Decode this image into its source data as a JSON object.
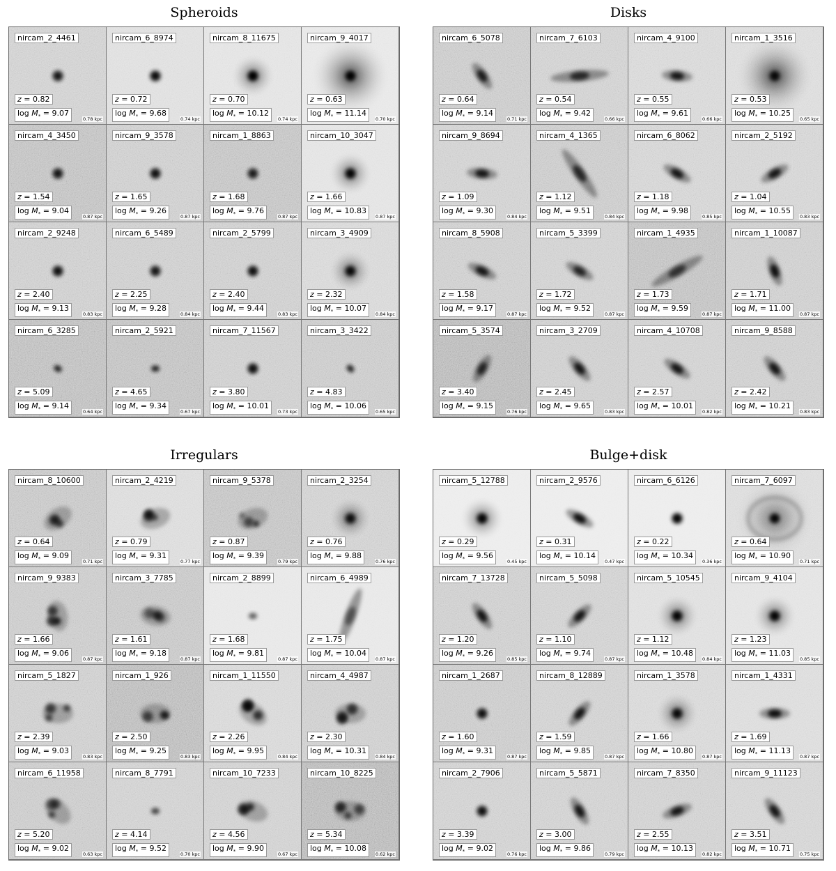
{
  "panels": [
    {
      "title": "Spheroids",
      "galaxies": [
        {
          "id": "nircam_2_4461",
          "z": "0.82",
          "logm": "9.07",
          "scale": "0.78 kpc",
          "noise": 0.45,
          "shape": "compact",
          "bright": 0.8,
          "angle": 0
        },
        {
          "id": "nircam_6_8974",
          "z": "0.72",
          "logm": "9.68",
          "scale": "0.74 kpc",
          "noise": 0.25,
          "shape": "compact",
          "bright": 0.9,
          "angle": 0
        },
        {
          "id": "nircam_8_11675",
          "z": "0.70",
          "logm": "10.12",
          "scale": "0.74 kpc",
          "noise": 0.2,
          "shape": "halo",
          "bright": 1.0,
          "angle": 0
        },
        {
          "id": "nircam_9_4017",
          "z": "0.63",
          "logm": "11.14",
          "scale": "0.70 kpc",
          "noise": 0.15,
          "shape": "bighalo",
          "bright": 1.0,
          "angle": 0
        },
        {
          "id": "nircam_4_3450",
          "z": "1.54",
          "logm": "9.04",
          "scale": "0.87 kpc",
          "noise": 0.7,
          "shape": "compact",
          "bright": 0.8,
          "angle": 0
        },
        {
          "id": "nircam_9_3578",
          "z": "1.65",
          "logm": "9.26",
          "scale": "0.87 kpc",
          "noise": 0.5,
          "shape": "compact",
          "bright": 0.85,
          "angle": 0
        },
        {
          "id": "nircam_1_8863",
          "z": "1.68",
          "logm": "9.76",
          "scale": "0.87 kpc",
          "noise": 0.65,
          "shape": "compact",
          "bright": 0.75,
          "angle": 0
        },
        {
          "id": "nircam_10_3047",
          "z": "1.66",
          "logm": "10.83",
          "scale": "0.87 kpc",
          "noise": 0.2,
          "shape": "halo",
          "bright": 0.95,
          "angle": 0
        },
        {
          "id": "nircam_2_9248",
          "z": "2.40",
          "logm": "9.13",
          "scale": "0.83 kpc",
          "noise": 0.5,
          "shape": "compact",
          "bright": 0.85,
          "angle": 0
        },
        {
          "id": "nircam_6_5489",
          "z": "2.25",
          "logm": "9.28",
          "scale": "0.84 kpc",
          "noise": 0.5,
          "shape": "compact",
          "bright": 0.8,
          "angle": 20
        },
        {
          "id": "nircam_2_5799",
          "z": "2.40",
          "logm": "9.44",
          "scale": "0.83 kpc",
          "noise": 0.5,
          "shape": "compact",
          "bright": 0.85,
          "angle": 0
        },
        {
          "id": "nircam_3_4909",
          "z": "2.32",
          "logm": "10.07",
          "scale": "0.84 kpc",
          "noise": 0.35,
          "shape": "halo",
          "bright": 0.9,
          "angle": 0
        },
        {
          "id": "nircam_6_3285",
          "z": "5.09",
          "logm": "9.14",
          "scale": "0.64 kpc",
          "noise": 0.75,
          "shape": "small",
          "bright": 0.85,
          "angle": 30
        },
        {
          "id": "nircam_2_5921",
          "z": "4.65",
          "logm": "9.34",
          "scale": "0.67 kpc",
          "noise": 0.7,
          "shape": "small",
          "bright": 0.85,
          "angle": 0
        },
        {
          "id": "nircam_7_11567",
          "z": "3.80",
          "logm": "10.01",
          "scale": "0.73 kpc",
          "noise": 0.5,
          "shape": "compact",
          "bright": 0.85,
          "angle": 0
        },
        {
          "id": "nircam_3_3422",
          "z": "4.83",
          "logm": "10.06",
          "scale": "0.65 kpc",
          "noise": 0.55,
          "shape": "small",
          "bright": 0.85,
          "angle": 45
        }
      ]
    },
    {
      "title": "Disks",
      "galaxies": [
        {
          "id": "nircam_6_5078",
          "z": "0.64",
          "logm": "9.14",
          "scale": "0.71 kpc",
          "noise": 0.55,
          "shape": "disk",
          "bright": 0.8,
          "angle": 55
        },
        {
          "id": "nircam_7_6103",
          "z": "0.54",
          "logm": "9.42",
          "scale": "0.66 kpc",
          "noise": 0.45,
          "shape": "longdisk",
          "bright": 0.85,
          "angle": -5
        },
        {
          "id": "nircam_4_9100",
          "z": "0.55",
          "logm": "9.61",
          "scale": "0.66 kpc",
          "noise": 0.35,
          "shape": "disk",
          "bright": 0.85,
          "angle": 5
        },
        {
          "id": "nircam_1_3516",
          "z": "0.53",
          "logm": "10.25",
          "scale": "0.65 kpc",
          "noise": 0.3,
          "shape": "bighalo",
          "bright": 0.9,
          "angle": 60
        },
        {
          "id": "nircam_9_8694",
          "z": "1.09",
          "logm": "9.30",
          "scale": "0.84 kpc",
          "noise": 0.45,
          "shape": "disk",
          "bright": 0.85,
          "angle": 5
        },
        {
          "id": "nircam_4_1365",
          "z": "1.12",
          "logm": "9.51",
          "scale": "0.84 kpc",
          "noise": 0.55,
          "shape": "longdisk",
          "bright": 0.85,
          "angle": 55
        },
        {
          "id": "nircam_6_8062",
          "z": "1.18",
          "logm": "9.98",
          "scale": "0.85 kpc",
          "noise": 0.4,
          "shape": "disk",
          "bright": 0.85,
          "angle": 30
        },
        {
          "id": "nircam_2_5192",
          "z": "1.04",
          "logm": "10.55",
          "scale": "0.83 kpc",
          "noise": 0.4,
          "shape": "disk",
          "bright": 0.85,
          "angle": -30
        },
        {
          "id": "nircam_8_5908",
          "z": "1.58",
          "logm": "9.17",
          "scale": "0.87 kpc",
          "noise": 0.5,
          "shape": "disk",
          "bright": 0.85,
          "angle": 25
        },
        {
          "id": "nircam_5_3399",
          "z": "1.72",
          "logm": "9.52",
          "scale": "0.87 kpc",
          "noise": 0.45,
          "shape": "disk",
          "bright": 0.75,
          "angle": 30
        },
        {
          "id": "nircam_1_4935",
          "z": "1.73",
          "logm": "9.59",
          "scale": "0.87 kpc",
          "noise": 0.7,
          "shape": "longdisk",
          "bright": 0.75,
          "angle": -30
        },
        {
          "id": "nircam_1_10087",
          "z": "1.71",
          "logm": "11.00",
          "scale": "0.87 kpc",
          "noise": 0.5,
          "shape": "disk",
          "bright": 0.9,
          "angle": 70
        },
        {
          "id": "nircam_5_3574",
          "z": "3.40",
          "logm": "9.15",
          "scale": "0.76 kpc",
          "noise": 0.85,
          "shape": "disk",
          "bright": 0.75,
          "angle": -60
        },
        {
          "id": "nircam_3_2709",
          "z": "2.45",
          "logm": "9.65",
          "scale": "0.83 kpc",
          "noise": 0.5,
          "shape": "disk",
          "bright": 0.85,
          "angle": 50
        },
        {
          "id": "nircam_4_10708",
          "z": "2.57",
          "logm": "10.01",
          "scale": "0.82 kpc",
          "noise": 0.45,
          "shape": "disk",
          "bright": 0.85,
          "angle": 35
        },
        {
          "id": "nircam_9_8588",
          "z": "2.42",
          "logm": "10.21",
          "scale": "0.83 kpc",
          "noise": 0.5,
          "shape": "disk",
          "bright": 0.85,
          "angle": 50
        }
      ]
    },
    {
      "title": "Irregulars",
      "galaxies": [
        {
          "id": "nircam_8_10600",
          "z": "0.64",
          "logm": "9.09",
          "scale": "0.71 kpc",
          "noise": 0.6,
          "shape": "irr",
          "bright": 0.85,
          "angle": -35
        },
        {
          "id": "nircam_2_4219",
          "z": "0.79",
          "logm": "9.31",
          "scale": "0.77 kpc",
          "noise": 0.3,
          "shape": "irr",
          "bright": 0.85,
          "angle": -20
        },
        {
          "id": "nircam_9_5378",
          "z": "0.87",
          "logm": "9.39",
          "scale": "0.79 kpc",
          "noise": 0.65,
          "shape": "irr",
          "bright": 0.75,
          "angle": -20
        },
        {
          "id": "nircam_2_3254",
          "z": "0.76",
          "logm": "9.88",
          "scale": "0.76 kpc",
          "noise": 0.45,
          "shape": "halo",
          "bright": 0.85,
          "angle": 0
        },
        {
          "id": "nircam_9_9383",
          "z": "1.66",
          "logm": "9.06",
          "scale": "0.87 kpc",
          "noise": 0.55,
          "shape": "irr",
          "bright": 0.8,
          "angle": 80
        },
        {
          "id": "nircam_3_7785",
          "z": "1.61",
          "logm": "9.18",
          "scale": "0.87 kpc",
          "noise": 0.6,
          "shape": "irr",
          "bright": 0.75,
          "angle": 10
        },
        {
          "id": "nircam_2_8899",
          "z": "1.68",
          "logm": "9.81",
          "scale": "0.87 kpc",
          "noise": 0.15,
          "shape": "small",
          "bright": 0.6,
          "angle": 0
        },
        {
          "id": "nircam_6_4989",
          "z": "1.75",
          "logm": "10.04",
          "scale": "0.87 kpc",
          "noise": 0.15,
          "shape": "longdisk",
          "bright": 0.55,
          "angle": -70
        },
        {
          "id": "nircam_5_1827",
          "z": "2.39",
          "logm": "9.03",
          "scale": "0.83 kpc",
          "noise": 0.5,
          "shape": "irr",
          "bright": 0.7,
          "angle": 0
        },
        {
          "id": "nircam_1_926",
          "z": "2.50",
          "logm": "9.25",
          "scale": "0.83 kpc",
          "noise": 0.8,
          "shape": "irr",
          "bright": 0.8,
          "angle": 0
        },
        {
          "id": "nircam_1_11550",
          "z": "2.26",
          "logm": "9.95",
          "scale": "0.84 kpc",
          "noise": 0.35,
          "shape": "irr",
          "bright": 0.85,
          "angle": 35
        },
        {
          "id": "nircam_4_4987",
          "z": "2.30",
          "logm": "10.31",
          "scale": "0.84 kpc",
          "noise": 0.5,
          "shape": "irr",
          "bright": 0.85,
          "angle": 0
        },
        {
          "id": "nircam_6_11958",
          "z": "5.20",
          "logm": "9.02",
          "scale": "0.63 kpc",
          "noise": 0.55,
          "shape": "irr",
          "bright": 0.85,
          "angle": 45
        },
        {
          "id": "nircam_8_7791",
          "z": "4.14",
          "logm": "9.52",
          "scale": "0.70 kpc",
          "noise": 0.45,
          "shape": "small",
          "bright": 0.7,
          "angle": 0
        },
        {
          "id": "nircam_10_7233",
          "z": "4.56",
          "logm": "9.90",
          "scale": "0.67 kpc",
          "noise": 0.45,
          "shape": "irr",
          "bright": 0.85,
          "angle": 20
        },
        {
          "id": "nircam_10_8225",
          "z": "5.34",
          "logm": "10.08",
          "scale": "0.62 kpc",
          "noise": 0.85,
          "shape": "irr",
          "bright": 0.8,
          "angle": 0
        }
      ]
    },
    {
      "title": "Bulge+disk",
      "galaxies": [
        {
          "id": "nircam_5_12788",
          "z": "0.29",
          "logm": "9.56",
          "scale": "0.45 kpc",
          "noise": 0.1,
          "shape": "halo",
          "bright": 0.95,
          "angle": 0
        },
        {
          "id": "nircam_2_9576",
          "z": "0.31",
          "logm": "10.14",
          "scale": "0.47 kpc",
          "noise": 0.1,
          "shape": "disk",
          "bright": 0.9,
          "angle": 30
        },
        {
          "id": "nircam_6_6126",
          "z": "0.22",
          "logm": "10.34",
          "scale": "0.36 kpc",
          "noise": 0.1,
          "shape": "compact",
          "bright": 0.95,
          "angle": 0
        },
        {
          "id": "nircam_7_6097",
          "z": "0.64",
          "logm": "10.90",
          "scale": "0.71 kpc",
          "noise": 0.3,
          "shape": "spiral",
          "bright": 0.95,
          "angle": 0
        },
        {
          "id": "nircam_7_13728",
          "z": "1.20",
          "logm": "9.26",
          "scale": "0.85 kpc",
          "noise": 0.5,
          "shape": "disk",
          "bright": 0.85,
          "angle": 55
        },
        {
          "id": "nircam_5_5098",
          "z": "1.10",
          "logm": "9.74",
          "scale": "0.87 kpc",
          "noise": 0.45,
          "shape": "disk",
          "bright": 0.85,
          "angle": -45
        },
        {
          "id": "nircam_5_10545",
          "z": "1.12",
          "logm": "10.48",
          "scale": "0.84 kpc",
          "noise": 0.25,
          "shape": "halo",
          "bright": 0.95,
          "angle": 0
        },
        {
          "id": "nircam_9_4104",
          "z": "1.23",
          "logm": "11.03",
          "scale": "0.85 kpc",
          "noise": 0.2,
          "shape": "halo",
          "bright": 0.95,
          "angle": 0
        },
        {
          "id": "nircam_1_2687",
          "z": "1.60",
          "logm": "9.31",
          "scale": "0.87 kpc",
          "noise": 0.55,
          "shape": "compact",
          "bright": 0.85,
          "angle": 60
        },
        {
          "id": "nircam_8_12889",
          "z": "1.59",
          "logm": "9.85",
          "scale": "0.87 kpc",
          "noise": 0.45,
          "shape": "disk",
          "bright": 0.85,
          "angle": -50
        },
        {
          "id": "nircam_1_3578",
          "z": "1.66",
          "logm": "10.80",
          "scale": "0.87 kpc",
          "noise": 0.35,
          "shape": "halo",
          "bright": 0.9,
          "angle": 0
        },
        {
          "id": "nircam_1_4331",
          "z": "1.69",
          "logm": "11.13",
          "scale": "0.87 kpc",
          "noise": 0.3,
          "shape": "disk",
          "bright": 0.9,
          "angle": 0
        },
        {
          "id": "nircam_2_7906",
          "z": "3.39",
          "logm": "9.02",
          "scale": "0.76 kpc",
          "noise": 0.45,
          "shape": "compact",
          "bright": 0.85,
          "angle": 0
        },
        {
          "id": "nircam_5_5871",
          "z": "3.00",
          "logm": "9.86",
          "scale": "0.79 kpc",
          "noise": 0.45,
          "shape": "disk",
          "bright": 0.85,
          "angle": 60
        },
        {
          "id": "nircam_7_8350",
          "z": "2.55",
          "logm": "10.13",
          "scale": "0.82 kpc",
          "noise": 0.45,
          "shape": "disk",
          "bright": 0.85,
          "angle": -20
        },
        {
          "id": "nircam_9_11123",
          "z": "3.51",
          "logm": "10.71",
          "scale": "0.75 kpc",
          "noise": 0.4,
          "shape": "disk",
          "bright": 0.85,
          "angle": 55
        }
      ]
    }
  ]
}
